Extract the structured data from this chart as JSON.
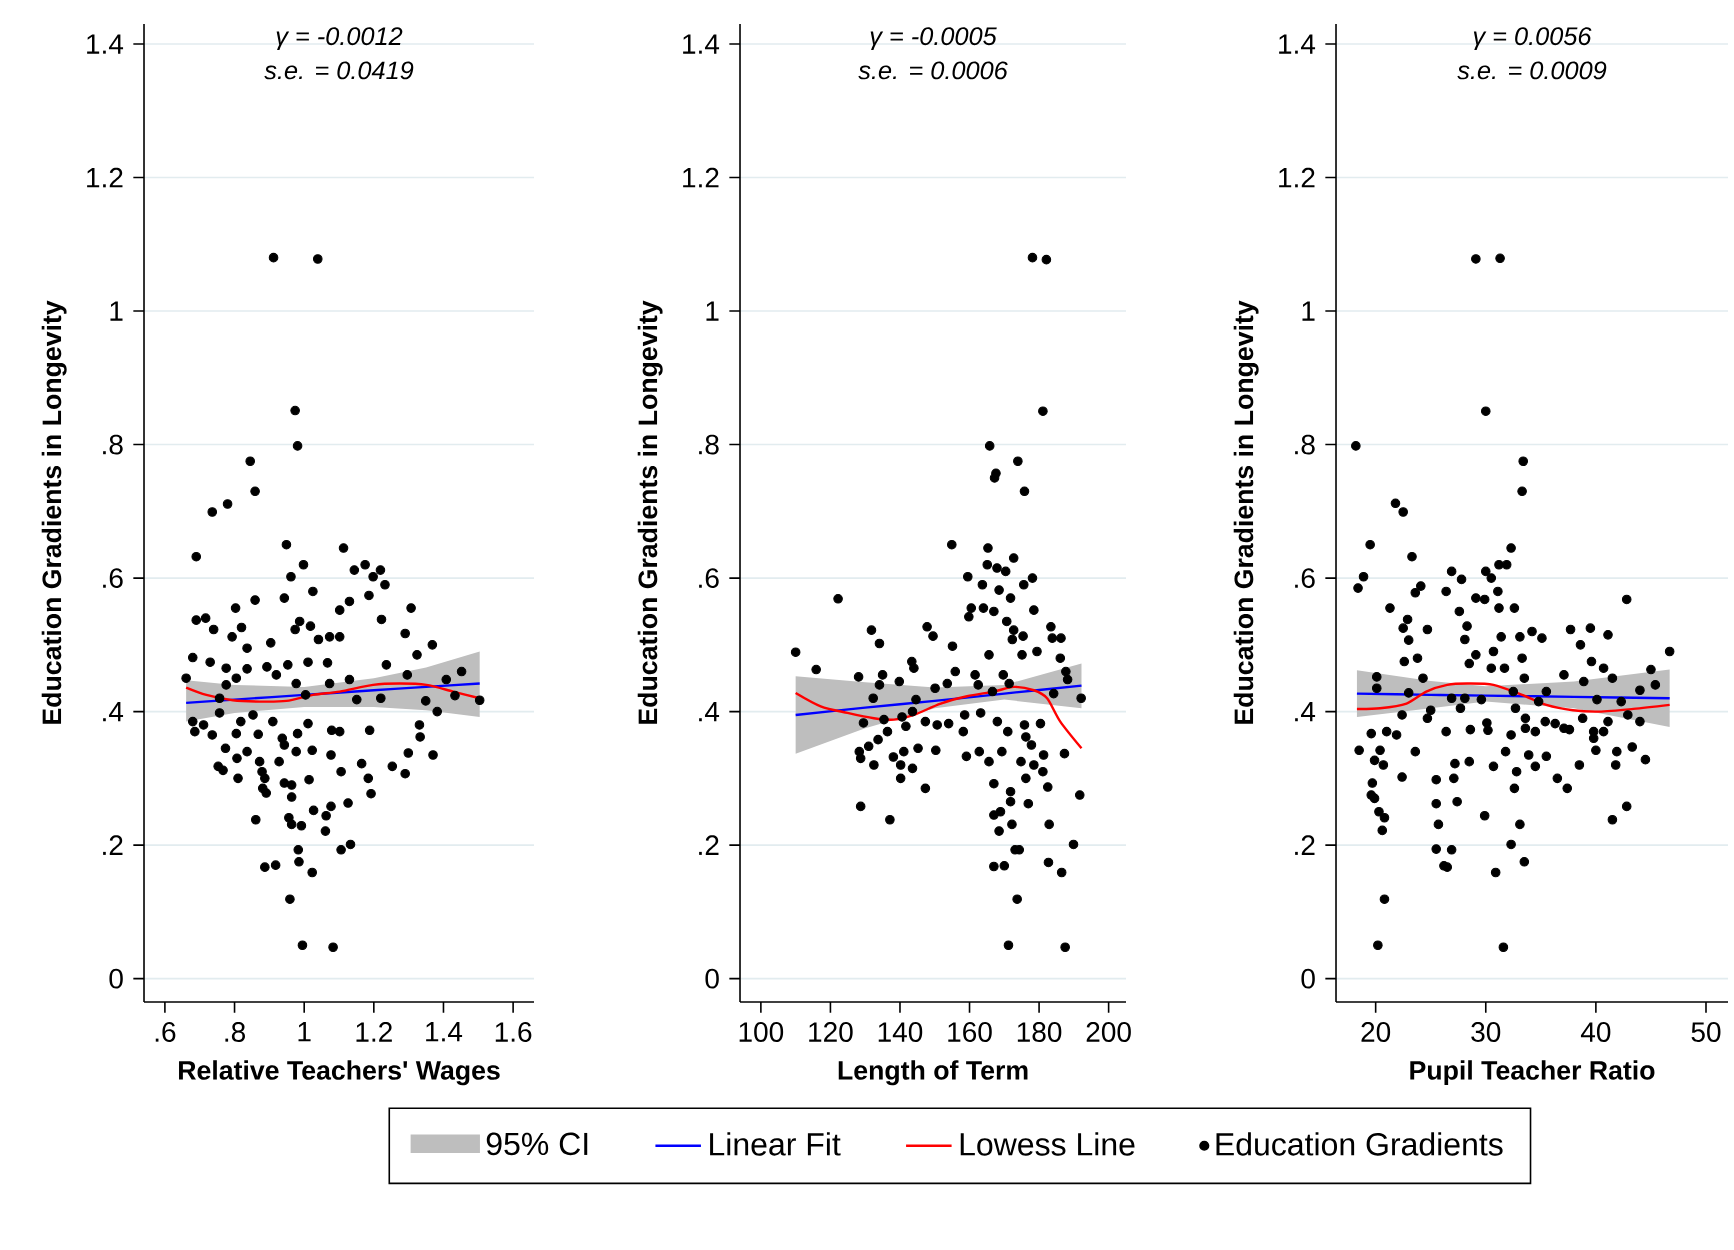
{
  "chart_data": [
    {
      "type": "scatter",
      "xlabel": "Relative Teachers' Wages",
      "ylabel": "Education Gradients in Longevity",
      "annotations": [
        "γ = -0.0012",
        "s.e. = 0.0419",
        "95% CI"
      ],
      "xlim": [
        0.54,
        1.66
      ],
      "ylim": [
        -0.035,
        1.43
      ],
      "xticks": [
        {
          "value": 0.6,
          "label": ".6"
        },
        {
          "value": 0.8,
          "label": ".8"
        },
        1,
        1.2,
        1.4,
        1.6
      ],
      "yticks": [
        0,
        {
          "value": 0.2,
          "label": ".2"
        },
        {
          "value": 0.4,
          "label": ".4"
        },
        {
          "value": 0.6,
          "label": ".6"
        },
        {
          "value": 0.8,
          "label": ".8"
        },
        1,
        1.2,
        1.4
      ],
      "grid": "y",
      "legend": "bottom",
      "series": [
        {
          "name": "Linear Fit",
          "type": "line",
          "color": "#0000ff",
          "x": [
            0.661,
            0.8,
            1.0,
            1.2,
            1.35,
            1.504
          ],
          "values": [
            0.413,
            0.418,
            0.425,
            0.432,
            0.437,
            0.442
          ],
          "lower": [
            0.385,
            0.398,
            0.407,
            0.407,
            0.402,
            0.392
          ],
          "upper": [
            0.447,
            0.44,
            0.437,
            0.45,
            0.466,
            0.49
          ]
        },
        {
          "name": "Lowess Line",
          "type": "line",
          "color": "#ff0000",
          "x": [
            0.661,
            0.719,
            0.795,
            0.872,
            0.949,
            1.025,
            1.102,
            1.198,
            1.274,
            1.351,
            1.428,
            1.504
          ],
          "values": [
            0.436,
            0.425,
            0.417,
            0.415,
            0.416,
            0.425,
            0.43,
            0.44,
            0.442,
            0.44,
            0.43,
            0.42
          ]
        },
        {
          "name": "Education Gradients",
          "color": "#000000",
          "marker": "circle",
          "x": [
            0.912,
            1.039,
            0.974,
            0.981,
            0.845,
            0.859,
            0.736,
            0.78,
            0.949,
            1.113,
            0.69,
            0.998,
            1.144,
            1.175,
            1.219,
            1.198,
            0.962,
            1.025,
            1.232,
            1.186,
            0.943,
            1.13,
            0.859,
            0.803,
            1.102,
            1.307,
            0.69,
            0.717,
            0.987,
            1.222,
            0.974,
            1.018,
            0.74,
            0.82,
            1.041,
            1.073,
            1.102,
            0.793,
            0.904,
            1.29,
            0.836,
            1.368,
            1.324,
            0.68,
            0.73,
            1.011,
            1.067,
            0.953,
            1.236,
            0.776,
            0.836,
            0.893,
            1.296,
            0.661,
            0.805,
            0.92,
            0.977,
            1.13,
            1.408,
            1.452,
            0.776,
            0.757,
            1.004,
            1.073,
            1.151,
            1.22,
            1.349,
            1.433,
            1.504,
            0.68,
            0.711,
            0.757,
            0.818,
            0.853,
            0.91,
            1.011,
            1.079,
            1.382,
            1.331,
            0.686,
            0.736,
            0.805,
            0.868,
            0.937,
            0.981,
            1.102,
            1.188,
            1.333,
            0.774,
            0.836,
            0.943,
            1.023,
            1.37,
            1.299,
            0.753,
            0.807,
            0.872,
            0.928,
            0.977,
            1.077,
            1.165,
            1.253,
            0.767,
            0.879,
            1.106,
            0.81,
            0.887,
            1.014,
            1.184,
            1.29,
            0.943,
            0.964,
            0.881,
            0.891,
            1.192,
            0.964,
            1.126,
            1.077,
            1.027,
            1.063,
            0.861,
            0.956,
            0.964,
            0.992,
            1.061,
            1.133,
            1.106,
            0.983,
            0.985,
            0.887,
            0.918,
            1.023,
            0.959,
            0.995,
            1.083
          ],
          "values": [
            1.08,
            1.078,
            0.851,
            0.798,
            0.775,
            0.73,
            0.699,
            0.711,
            0.65,
            0.645,
            0.632,
            0.62,
            0.612,
            0.62,
            0.612,
            0.602,
            0.602,
            0.58,
            0.59,
            0.574,
            0.57,
            0.565,
            0.567,
            0.555,
            0.552,
            0.555,
            0.537,
            0.54,
            0.535,
            0.538,
            0.523,
            0.528,
            0.523,
            0.526,
            0.508,
            0.512,
            0.512,
            0.512,
            0.503,
            0.517,
            0.495,
            0.5,
            0.485,
            0.481,
            0.474,
            0.474,
            0.473,
            0.47,
            0.47,
            0.465,
            0.464,
            0.467,
            0.455,
            0.45,
            0.45,
            0.455,
            0.442,
            0.448,
            0.448,
            0.46,
            0.44,
            0.42,
            0.425,
            0.442,
            0.418,
            0.42,
            0.416,
            0.424,
            0.417,
            0.385,
            0.38,
            0.398,
            0.385,
            0.395,
            0.385,
            0.382,
            0.372,
            0.4,
            0.38,
            0.37,
            0.365,
            0.367,
            0.366,
            0.36,
            0.367,
            0.37,
            0.372,
            0.362,
            0.345,
            0.34,
            0.35,
            0.342,
            0.335,
            0.338,
            0.318,
            0.33,
            0.325,
            0.325,
            0.34,
            0.335,
            0.322,
            0.318,
            0.312,
            0.31,
            0.31,
            0.3,
            0.3,
            0.298,
            0.3,
            0.307,
            0.293,
            0.29,
            0.285,
            0.278,
            0.277,
            0.272,
            0.263,
            0.258,
            0.252,
            0.244,
            0.238,
            0.241,
            0.231,
            0.229,
            0.221,
            0.201,
            0.193,
            0.193,
            0.175,
            0.167,
            0.17,
            0.159,
            0.119,
            0.05,
            0.047
          ]
        }
      ]
    },
    {
      "type": "scatter",
      "xlabel": "Length of Term",
      "ylabel": "Education Gradients in Longevity",
      "annotations": [
        "γ = -0.0005",
        "s.e. = 0.0006"
      ],
      "xlim": [
        94,
        205
      ],
      "ylim": [
        -0.035,
        1.43
      ],
      "xticks": [
        100,
        120,
        140,
        160,
        180,
        200
      ],
      "yticks": [
        0,
        {
          "value": 0.2,
          "label": ".2"
        },
        {
          "value": 0.4,
          "label": ".4"
        },
        {
          "value": 0.6,
          "label": ".6"
        },
        {
          "value": 0.8,
          "label": ".8"
        },
        1,
        1.2,
        1.4
      ],
      "grid": "y",
      "series": [
        {
          "type": "line",
          "color": "#0000ff",
          "x": [
            110,
            130,
            150,
            170,
            192.2
          ],
          "values": [
            0.395,
            0.406,
            0.416,
            0.427,
            0.439
          ],
          "lower": [
            0.337,
            0.375,
            0.405,
            0.418,
            0.405
          ],
          "upper": [
            0.453,
            0.444,
            0.436,
            0.44,
            0.472
          ]
        },
        {
          "type": "line",
          "color": "#ff0000",
          "x": [
            110,
            117.2,
            124.9,
            132.5,
            138.3,
            144,
            151.7,
            159.3,
            167,
            172.7,
            178.5,
            182.3,
            186.1,
            192.2
          ],
          "values": [
            0.428,
            0.408,
            0.398,
            0.39,
            0.388,
            0.395,
            0.412,
            0.423,
            0.43,
            0.437,
            0.432,
            0.42,
            0.385,
            0.345
          ]
        },
        {
          "color": "#000000",
          "marker": "circle",
          "x": [
            178.1,
            182.1,
            181.1,
            165.8,
            173.9,
            167.6,
            167.2,
            175.8,
            154.9,
            165.3,
            172.7,
            122.2,
            159.5,
            165.1,
            167.9,
            170.4,
            178.1,
            175.6,
            163.7,
            168.5,
            171.8,
            160.5,
            164,
            178.5,
            167,
            159.8,
            170.7,
            131.8,
            147.8,
            183.4,
            149.5,
            172.7,
            175.4,
            183.8,
            186.3,
            134.1,
            155.1,
            172.3,
            110,
            115.9,
            143.4,
            144,
            165.6,
            175.1,
            179.4,
            186.1,
            128.1,
            135,
            155.9,
            161.6,
            169.7,
            187.7,
            188.2,
            134.1,
            139.8,
            150.1,
            153.6,
            162.5,
            166.6,
            171.4,
            184.2,
            192.1,
            132.3,
            144.6,
            129.5,
            135.4,
            140.6,
            141.7,
            143.6,
            147.3,
            150.7,
            154,
            158.6,
            158.2,
            163.2,
            168,
            171,
            175.8,
            180.4,
            176.2,
            136.4,
            133.7,
            128.3,
            131,
            138.1,
            141.1,
            145.2,
            150.3,
            159.1,
            162.8,
            169.3,
            177.8,
            181.3,
            128.7,
            132.5,
            140.2,
            143.6,
            165.6,
            174.8,
            178.5,
            181.1,
            187.3,
            140.2,
            147.3,
            167,
            171.8,
            176.2,
            182.5,
            191.7,
            128.7,
            137.1,
            167,
            168.9,
            171.8,
            176.9,
            172.2,
            182.9,
            168.5,
            189.9,
            173.1,
            174.3,
            167,
            170,
            182.7,
            186.5,
            173.7,
            171.2,
            187.5
          ],
          "values": [
            1.08,
            1.077,
            0.85,
            0.798,
            0.775,
            0.757,
            0.75,
            0.73,
            0.65,
            0.645,
            0.63,
            0.569,
            0.602,
            0.62,
            0.615,
            0.61,
            0.6,
            0.59,
            0.59,
            0.582,
            0.57,
            0.555,
            0.555,
            0.552,
            0.55,
            0.542,
            0.535,
            0.522,
            0.527,
            0.527,
            0.513,
            0.522,
            0.513,
            0.51,
            0.51,
            0.502,
            0.498,
            0.508,
            0.489,
            0.463,
            0.475,
            0.465,
            0.485,
            0.485,
            0.49,
            0.48,
            0.452,
            0.455,
            0.46,
            0.455,
            0.455,
            0.46,
            0.448,
            0.44,
            0.445,
            0.435,
            0.442,
            0.44,
            0.43,
            0.442,
            0.427,
            0.42,
            0.42,
            0.418,
            0.383,
            0.388,
            0.392,
            0.378,
            0.4,
            0.385,
            0.38,
            0.382,
            0.395,
            0.37,
            0.398,
            0.385,
            0.37,
            0.38,
            0.382,
            0.362,
            0.37,
            0.358,
            0.34,
            0.348,
            0.332,
            0.34,
            0.345,
            0.342,
            0.333,
            0.34,
            0.34,
            0.35,
            0.335,
            0.33,
            0.32,
            0.32,
            0.315,
            0.325,
            0.325,
            0.32,
            0.31,
            0.337,
            0.3,
            0.285,
            0.292,
            0.28,
            0.3,
            0.287,
            0.275,
            0.258,
            0.238,
            0.245,
            0.25,
            0.265,
            0.262,
            0.231,
            0.231,
            0.221,
            0.201,
            0.193,
            0.193,
            0.168,
            0.169,
            0.174,
            0.159,
            0.119,
            0.05,
            0.047
          ]
        }
      ]
    },
    {
      "type": "scatter",
      "xlabel": "Pupil Teacher Ratio",
      "ylabel": "Education Gradients in Longevity",
      "annotations": [
        "γ = 0.0056",
        "s.e. = 0.0009"
      ],
      "xlim": [
        16.4,
        52
      ],
      "ylim": [
        -0.035,
        1.43
      ],
      "xticks": [
        20,
        30,
        40,
        50
      ],
      "yticks": [
        0,
        {
          "value": 0.2,
          "label": ".2"
        },
        {
          "value": 0.4,
          "label": ".4"
        },
        {
          "value": 0.6,
          "label": ".6"
        },
        {
          "value": 0.8,
          "label": ".8"
        },
        1,
        1.2,
        1.4
      ],
      "grid": "y",
      "series": [
        {
          "type": "line",
          "color": "#0000ff",
          "x": [
            18.3,
            25,
            30,
            38,
            46.7
          ],
          "values": [
            0.427,
            0.425,
            0.424,
            0.422,
            0.42
          ],
          "lower": [
            0.392,
            0.405,
            0.415,
            0.405,
            0.377
          ],
          "upper": [
            0.462,
            0.446,
            0.438,
            0.445,
            0.463
          ]
        },
        {
          "type": "line",
          "color": "#ff0000",
          "x": [
            18.3,
            20.4,
            22.8,
            24.6,
            26.5,
            28.3,
            30.7,
            33.3,
            35.5,
            37.9,
            40.3,
            43.4,
            46.7
          ],
          "values": [
            0.404,
            0.405,
            0.412,
            0.43,
            0.44,
            0.442,
            0.44,
            0.425,
            0.41,
            0.402,
            0.4,
            0.404,
            0.41
          ]
        },
        {
          "color": "#000000",
          "marker": "circle",
          "x": [
            29.1,
            31.3,
            30,
            33.4,
            18.2,
            33.3,
            21.8,
            22.5,
            19.5,
            32.3,
            23.3,
            31.2,
            31.9,
            18.4,
            18.9,
            26.9,
            30,
            30.5,
            27.8,
            24.1,
            23.6,
            31.1,
            26.4,
            29.1,
            29.9,
            42.8,
            21.3,
            27.6,
            31.2,
            32.6,
            22.9,
            22.5,
            24.7,
            28.3,
            37.7,
            39.5,
            34.2,
            35.1,
            31.4,
            33.1,
            23,
            41.1,
            28.1,
            38.6,
            30.7,
            46.7,
            29.1,
            33.3,
            22.6,
            39.6,
            23.8,
            28.5,
            30.5,
            45,
            31.7,
            37.1,
            40.7,
            24.3,
            20.1,
            41.5,
            33.5,
            38.9,
            45.4,
            20.1,
            23,
            28.1,
            32.5,
            35.5,
            44,
            29.6,
            34.8,
            40.1,
            26.9,
            42.3,
            22.4,
            24.7,
            25,
            27.7,
            30.1,
            32.7,
            33.6,
            35.4,
            37.1,
            38.8,
            41.1,
            42.9,
            44,
            19.6,
            18.5,
            21,
            21.9,
            26.4,
            28.6,
            30.2,
            32.3,
            33.6,
            34.5,
            36.3,
            37.6,
            39.8,
            40.7,
            43.3,
            20.4,
            23.6,
            31.8,
            33.9,
            35.5,
            39.8,
            40,
            41.9,
            44.5,
            19.9,
            20.7,
            27.2,
            28.5,
            30.7,
            32.8,
            34.5,
            38.5,
            41.8,
            25.5,
            27.1,
            36.5,
            19.7,
            22.4,
            32.6,
            37.4,
            19.6,
            27.4,
            25.5,
            19.9,
            29.9,
            20.3,
            20.8,
            20.6,
            25.7,
            33.1,
            41.5,
            42.8,
            32.3,
            25.5,
            26.9,
            26.2,
            26.5,
            33.5,
            30.9,
            20.8,
            20.2,
            31.6
          ],
          "values": [
            1.078,
            1.079,
            0.85,
            0.775,
            0.798,
            0.73,
            0.712,
            0.699,
            0.65,
            0.645,
            0.632,
            0.62,
            0.62,
            0.585,
            0.602,
            0.61,
            0.61,
            0.6,
            0.598,
            0.588,
            0.578,
            0.58,
            0.58,
            0.57,
            0.568,
            0.568,
            0.555,
            0.55,
            0.555,
            0.555,
            0.538,
            0.525,
            0.523,
            0.528,
            0.523,
            0.525,
            0.52,
            0.51,
            0.512,
            0.512,
            0.507,
            0.515,
            0.508,
            0.5,
            0.49,
            0.49,
            0.485,
            0.48,
            0.475,
            0.475,
            0.48,
            0.472,
            0.465,
            0.463,
            0.465,
            0.455,
            0.465,
            0.45,
            0.452,
            0.45,
            0.45,
            0.445,
            0.44,
            0.435,
            0.428,
            0.42,
            0.43,
            0.43,
            0.432,
            0.418,
            0.415,
            0.418,
            0.42,
            0.415,
            0.395,
            0.39,
            0.402,
            0.405,
            0.383,
            0.405,
            0.39,
            0.385,
            0.375,
            0.39,
            0.385,
            0.395,
            0.385,
            0.367,
            0.342,
            0.37,
            0.365,
            0.37,
            0.373,
            0.372,
            0.365,
            0.375,
            0.37,
            0.382,
            0.373,
            0.37,
            0.37,
            0.347,
            0.342,
            0.34,
            0.34,
            0.335,
            0.333,
            0.36,
            0.342,
            0.34,
            0.328,
            0.327,
            0.32,
            0.322,
            0.325,
            0.318,
            0.31,
            0.318,
            0.32,
            0.32,
            0.298,
            0.3,
            0.3,
            0.293,
            0.302,
            0.285,
            0.285,
            0.275,
            0.265,
            0.262,
            0.27,
            0.244,
            0.25,
            0.241,
            0.222,
            0.231,
            0.231,
            0.238,
            0.258,
            0.201,
            0.194,
            0.193,
            0.169,
            0.167,
            0.175,
            0.159,
            0.119,
            0.05,
            0.047
          ]
        }
      ]
    }
  ]
}
